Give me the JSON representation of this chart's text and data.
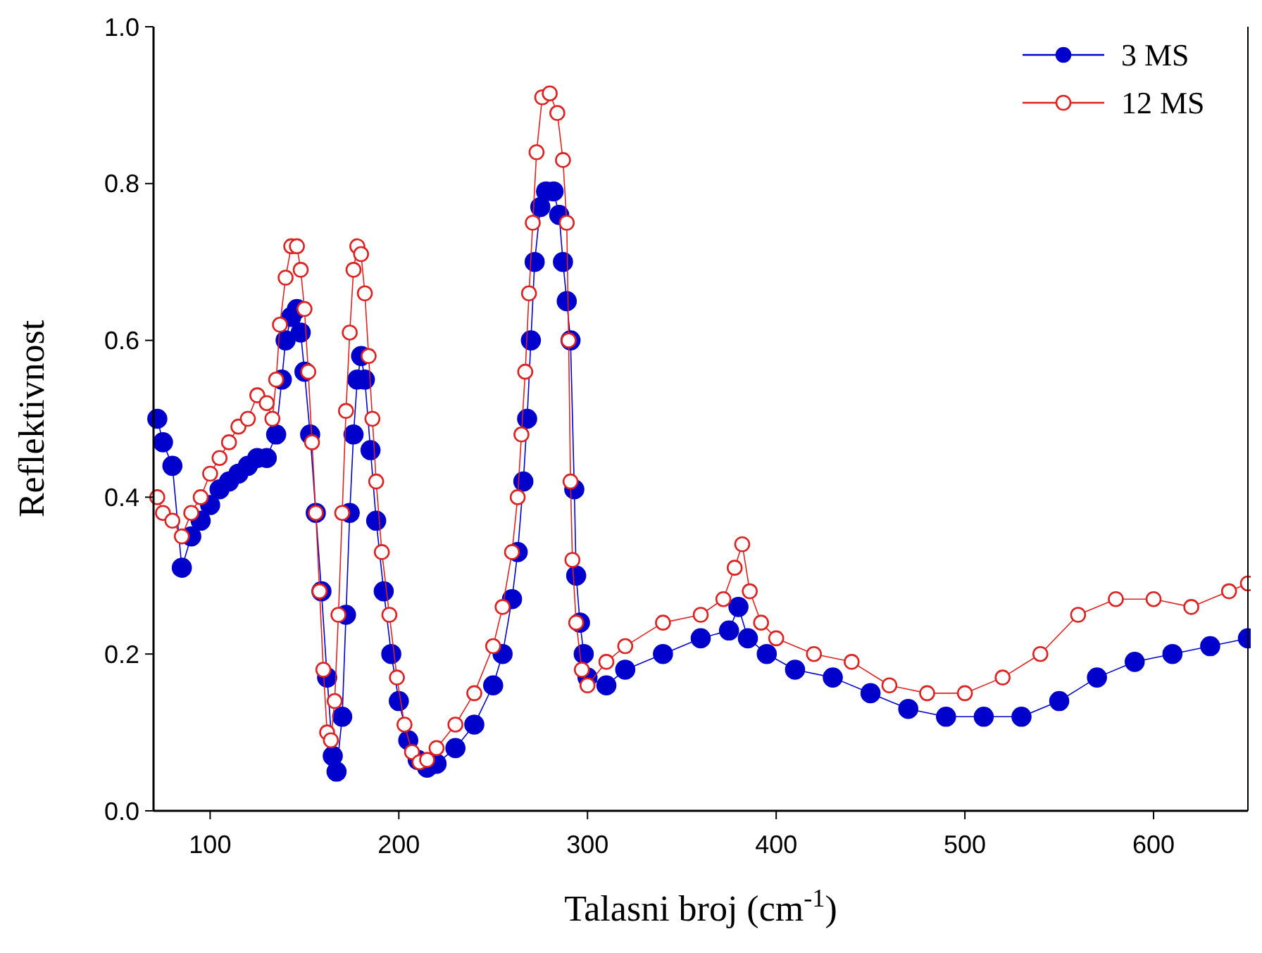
{
  "chart_data": {
    "type": "line",
    "xlabel": "Talasni broj (cm$^{-1}$)",
    "ylabel": "Reflektivnost",
    "xlim": [
      70,
      650
    ],
    "xticks": [
      100,
      200,
      300,
      400,
      500,
      600
    ],
    "ylim": [
      0,
      1
    ],
    "yticks": [
      {
        "value": 0,
        "label": "0.0"
      },
      0.2,
      0.4,
      0.6,
      0.8,
      {
        "value": 1,
        "label": "1.0"
      }
    ],
    "legend": "top right",
    "grid": false,
    "line_style": "solid",
    "series": [
      {
        "name": "3 MS",
        "color": "#0000cc",
        "marker": "circle",
        "x": [
          72,
          75,
          80,
          85,
          90,
          95,
          100,
          105,
          110,
          115,
          120,
          125,
          130,
          135,
          138,
          140,
          143,
          146,
          148,
          150,
          153,
          156,
          159,
          162,
          165,
          167,
          170,
          172,
          174,
          176,
          178,
          180,
          182,
          185,
          188,
          192,
          196,
          200,
          205,
          210,
          215,
          220,
          230,
          240,
          250,
          255,
          260,
          263,
          266,
          268,
          270,
          272,
          275,
          278,
          282,
          285,
          287,
          289,
          291,
          293,
          294,
          296,
          298,
          300,
          310,
          320,
          340,
          360,
          375,
          380,
          385,
          395,
          410,
          430,
          450,
          470,
          490,
          510,
          530,
          550,
          570,
          590,
          610,
          630,
          650
        ],
        "values": [
          0.5,
          0.47,
          0.44,
          0.31,
          0.35,
          0.37,
          0.39,
          0.41,
          0.42,
          0.43,
          0.44,
          0.45,
          0.45,
          0.48,
          0.55,
          0.6,
          0.63,
          0.64,
          0.61,
          0.56,
          0.48,
          0.38,
          0.28,
          0.17,
          0.07,
          0.05,
          0.12,
          0.25,
          0.38,
          0.48,
          0.55,
          0.58,
          0.55,
          0.46,
          0.37,
          0.28,
          0.2,
          0.14,
          0.09,
          0.065,
          0.055,
          0.06,
          0.08,
          0.11,
          0.16,
          0.2,
          0.27,
          0.33,
          0.42,
          0.5,
          0.6,
          0.7,
          0.77,
          0.79,
          0.79,
          0.76,
          0.7,
          0.65,
          0.6,
          0.41,
          0.3,
          0.24,
          0.2,
          0.17,
          0.16,
          0.18,
          0.2,
          0.22,
          0.23,
          0.26,
          0.22,
          0.2,
          0.18,
          0.17,
          0.15,
          0.13,
          0.12,
          0.12,
          0.12,
          0.14,
          0.17,
          0.19,
          0.2,
          0.21,
          0.22
        ]
      },
      {
        "name": "12 MS",
        "color": "#dd2222",
        "marker": "circle-open",
        "x": [
          72,
          75,
          80,
          85,
          90,
          95,
          100,
          105,
          110,
          115,
          120,
          125,
          130,
          133,
          135,
          137,
          140,
          143,
          146,
          148,
          150,
          152,
          154,
          156,
          158,
          160,
          162,
          164,
          166,
          168,
          170,
          172,
          174,
          176,
          178,
          180,
          182,
          184,
          186,
          188,
          191,
          195,
          199,
          203,
          207,
          211,
          215,
          220,
          230,
          240,
          250,
          255,
          260,
          263,
          265,
          267,
          269,
          271,
          273,
          276,
          280,
          284,
          287,
          289,
          290,
          291,
          292,
          294,
          297,
          300,
          310,
          320,
          340,
          360,
          372,
          378,
          382,
          386,
          392,
          400,
          420,
          440,
          460,
          480,
          500,
          520,
          540,
          560,
          580,
          600,
          620,
          640,
          650
        ],
        "values": [
          0.4,
          0.38,
          0.37,
          0.35,
          0.38,
          0.4,
          0.43,
          0.45,
          0.47,
          0.49,
          0.5,
          0.53,
          0.52,
          0.5,
          0.55,
          0.62,
          0.68,
          0.72,
          0.72,
          0.69,
          0.64,
          0.56,
          0.47,
          0.38,
          0.28,
          0.18,
          0.1,
          0.09,
          0.14,
          0.25,
          0.38,
          0.51,
          0.61,
          0.69,
          0.72,
          0.71,
          0.66,
          0.58,
          0.5,
          0.42,
          0.33,
          0.25,
          0.17,
          0.11,
          0.075,
          0.062,
          0.065,
          0.08,
          0.11,
          0.15,
          0.21,
          0.26,
          0.33,
          0.4,
          0.48,
          0.56,
          0.66,
          0.75,
          0.84,
          0.91,
          0.915,
          0.89,
          0.83,
          0.75,
          0.6,
          0.42,
          0.32,
          0.24,
          0.18,
          0.16,
          0.19,
          0.21,
          0.24,
          0.25,
          0.27,
          0.31,
          0.34,
          0.28,
          0.24,
          0.22,
          0.2,
          0.19,
          0.16,
          0.15,
          0.15,
          0.17,
          0.2,
          0.25,
          0.27,
          0.27,
          0.26,
          0.28,
          0.29
        ]
      }
    ]
  }
}
